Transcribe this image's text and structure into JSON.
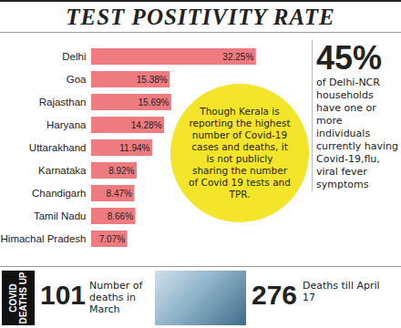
{
  "chart_data": {
    "type": "bar",
    "title": "TEST POSITIVITY RATE",
    "orientation": "horizontal",
    "categories": [
      "Delhi",
      "Goa",
      "Rajasthan",
      "Haryana",
      "Uttarakhand",
      "Karnataka",
      "Chandigarh",
      "Tamil Nadu",
      "Himachal Pradesh"
    ],
    "values": [
      32.25,
      15.38,
      15.69,
      14.28,
      11.94,
      8.92,
      8.47,
      8.66,
      7.07
    ],
    "value_labels": [
      "32.25%",
      "15.38%",
      "15.69%",
      "14.28%",
      "11.94%",
      "8.92%",
      "8.47%",
      "8.66%",
      "7.07%"
    ],
    "color": "#ee7b80",
    "xlim": [
      0,
      33
    ],
    "grid": false,
    "data_labels": true,
    "tick_labels": "y",
    "annotation": "Though Kerala is reporting the highest number of Covid-19 cases and deaths, it is not publicly sharing the number of Covid 19 tests and TPR.",
    "callout": {
      "value": 45,
      "label": "45%",
      "text": "of Delhi-NCR households have one or more individuals currently having Covid-19,flu, viral fever symptoms"
    },
    "banner": [
      "COVID",
      "DEATHS UP"
    ],
    "stats": [
      {
        "value": 101,
        "text": "Number of deaths in March"
      },
      {
        "value": 276,
        "text": "Deaths till April 17"
      }
    ]
  }
}
